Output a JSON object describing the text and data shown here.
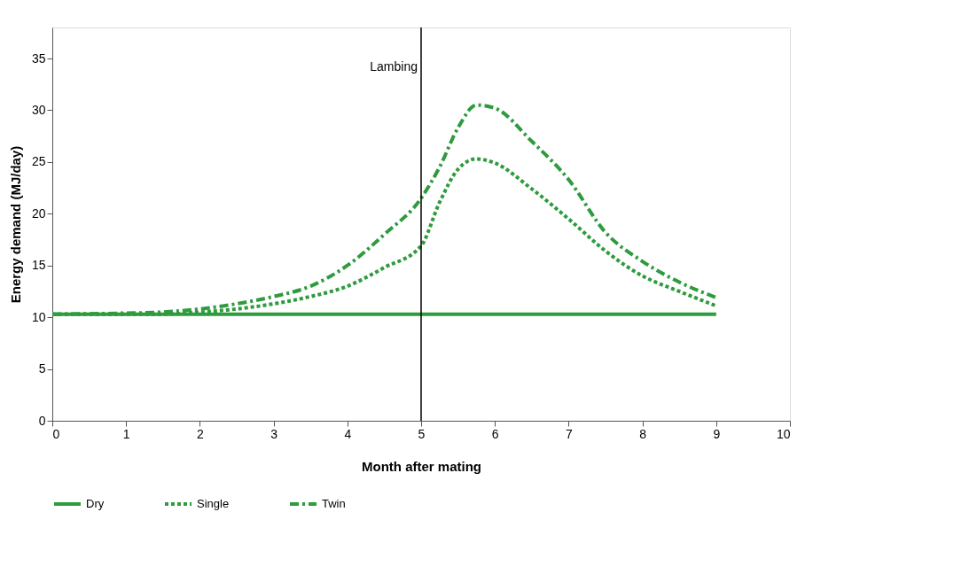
{
  "chart_data": {
    "type": "line",
    "xlabel": "Month after mating",
    "ylabel": "Energy demand (MJ/day)",
    "xlim": [
      0,
      10
    ],
    "xticks": [
      0,
      1,
      2,
      3,
      4,
      5,
      6,
      7,
      8,
      9,
      10
    ],
    "ylim": [
      0,
      38
    ],
    "yticks": [
      0,
      5,
      10,
      15,
      20,
      25,
      30,
      35
    ],
    "grid": false,
    "legend": "bottom",
    "marker": "none",
    "x": [
      0,
      1,
      1.5,
      2,
      2.5,
      3,
      3.5,
      4,
      4.5,
      5,
      5.25,
      5.5,
      5.75,
      6,
      6.5,
      7,
      7.5,
      8,
      8.5,
      9
    ],
    "series": [
      {
        "name": "Dry",
        "color": "#2e9b3e",
        "line_style": "solid",
        "values": [
          10.3,
          10.3,
          10.3,
          10.3,
          10.3,
          10.3,
          10.3,
          10.3,
          10.3,
          10.3,
          10.3,
          10.3,
          10.3,
          10.3,
          10.3,
          10.3,
          10.3,
          10.3,
          10.3,
          10.3
        ]
      },
      {
        "name": "Single",
        "color": "#2e9b3e",
        "line_style": "dotted",
        "values": [
          10.3,
          10.3,
          10.3,
          10.5,
          10.8,
          11.3,
          12.0,
          13.0,
          14.8,
          16.9,
          21.1,
          24.3,
          25.3,
          24.9,
          22.4,
          19.5,
          16.4,
          14.0,
          12.5,
          11.1
        ]
      },
      {
        "name": "Twin",
        "color": "#2e9b3e",
        "line_style": "dashed",
        "values": [
          10.3,
          10.4,
          10.5,
          10.8,
          11.3,
          12.0,
          13.0,
          15.0,
          18.0,
          21.5,
          24.5,
          28.3,
          30.5,
          30.2,
          27.0,
          23.3,
          18.2,
          15.4,
          13.4,
          11.9
        ]
      }
    ],
    "ref_lines": [
      {
        "axis": "x",
        "value": 5,
        "label": "Lambing",
        "color": "#000000"
      }
    ]
  }
}
